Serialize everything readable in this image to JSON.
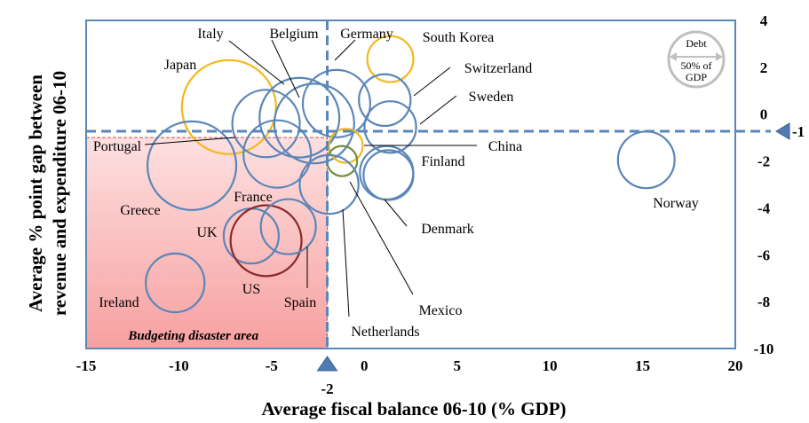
{
  "chart_data": {
    "type": "bubble-scatter",
    "title": "",
    "xlabel": "Average fiscal balance 06-10 (% GDP)",
    "ylabel_lines": [
      "Average % point gap between",
      "revenue and expenditure 06-10"
    ],
    "xlim": [
      -15,
      20
    ],
    "ylim": [
      -10,
      4
    ],
    "x_ticks": [
      -15,
      -10,
      -5,
      0,
      5,
      10,
      15,
      20
    ],
    "y_ticks": [
      4,
      2,
      0,
      -2,
      -4,
      -6,
      -8,
      -10
    ],
    "x_tick_labels": [
      "-15",
      "-10",
      "-5",
      "0",
      "5",
      "10",
      "15",
      "20"
    ],
    "y_tick_labels": [
      "4",
      "2",
      "0",
      "-2",
      "-4",
      "-6",
      "-8",
      "-10"
    ],
    "reference_lines": {
      "x": {
        "value": -2,
        "label": "-2"
      },
      "y": {
        "value": -1,
        "label": "-1"
      }
    },
    "shaded_region": {
      "label": "Budgeting disaster area",
      "x_range": [
        -15,
        -2
      ],
      "y_range": [
        -10,
        -1
      ]
    },
    "size_legend": {
      "title": "Debt",
      "value_label": "50% of",
      "unit_label": "GDP",
      "debt_pct": 50
    },
    "colors": {
      "default": "#5b86b8",
      "highlight_yellow": "#f2b81c",
      "us": "#8c2a2a",
      "mexico": "#6f8f3a",
      "frame": "#5b86b8",
      "region_top": "#fde0e0",
      "region_bottom": "#f7a0a0",
      "legend_gray": "#bfbfbf"
    },
    "series": [
      {
        "name": "Japan",
        "x": -7.3,
        "y": 0.3,
        "debt_pct": 146,
        "color": "highlight_yellow"
      },
      {
        "name": "Greece",
        "x": -9.3,
        "y": -2.2,
        "debt_pct": 130,
        "color": "default"
      },
      {
        "name": "Italy",
        "x": -3.5,
        "y": -0.15,
        "debt_pct": 105,
        "color": "default"
      },
      {
        "name": "Belgium",
        "x": -2.7,
        "y": -0.4,
        "debt_pct": 105,
        "color": "default"
      },
      {
        "name": "Portugal",
        "x": -5.3,
        "y": -0.4,
        "debt_pct": 75,
        "color": "default"
      },
      {
        "name": "France",
        "x": -4.7,
        "y": -1.7,
        "debt_pct": 75,
        "color": "default"
      },
      {
        "name": "Germany",
        "x": -1.5,
        "y": 0.45,
        "debt_pct": 75,
        "color": "default"
      },
      {
        "name": "South Korea",
        "x": 1.4,
        "y": 2.35,
        "debt_pct": 35,
        "color": "highlight_yellow"
      },
      {
        "name": "Switzerland",
        "x": 1.1,
        "y": 0.6,
        "debt_pct": 44,
        "color": "default"
      },
      {
        "name": "Sweden",
        "x": 1.4,
        "y": -0.55,
        "debt_pct": 44,
        "color": "default"
      },
      {
        "name": "China",
        "x": -1.0,
        "y": -1.35,
        "debt_pct": 19,
        "color": "highlight_yellow"
      },
      {
        "name": "Mexico",
        "x": -1.2,
        "y": -2.0,
        "debt_pct": 15,
        "color": "mexico"
      },
      {
        "name": "Netherlands",
        "x": -1.9,
        "y": -3.0,
        "debt_pct": 57,
        "color": "default"
      },
      {
        "name": "Finland",
        "x": 1.2,
        "y": -2.5,
        "debt_pct": 47,
        "color": "default"
      },
      {
        "name": "Denmark",
        "x": 1.3,
        "y": -2.6,
        "debt_pct": 41,
        "color": "default"
      },
      {
        "name": "Norway",
        "x": 15.2,
        "y": -1.95,
        "debt_pct": 53,
        "color": "default"
      },
      {
        "name": "UK",
        "x": -6.1,
        "y": -5.2,
        "debt_pct": 50,
        "color": "default"
      },
      {
        "name": "US",
        "x": -5.3,
        "y": -5.4,
        "debt_pct": 83,
        "color": "us"
      },
      {
        "name": "Spain",
        "x": -4.1,
        "y": -4.8,
        "debt_pct": 50,
        "color": "default"
      },
      {
        "name": "Ireland",
        "x": -10.2,
        "y": -7.2,
        "debt_pct": 57,
        "color": "default"
      }
    ],
    "annotations": [
      {
        "text": "Italy"
      },
      {
        "text": "Belgium"
      },
      {
        "text": "Germany"
      },
      {
        "text": "South Korea"
      },
      {
        "text": "Japan"
      },
      {
        "text": "Switzerland"
      },
      {
        "text": "Sweden"
      },
      {
        "text": "Portugal"
      },
      {
        "text": "China"
      },
      {
        "text": "Finland"
      },
      {
        "text": "Norway"
      },
      {
        "text": "Greece"
      },
      {
        "text": "France"
      },
      {
        "text": "UK"
      },
      {
        "text": "Denmark"
      },
      {
        "text": "US"
      },
      {
        "text": "Spain"
      },
      {
        "text": "Ireland"
      },
      {
        "text": "Mexico"
      },
      {
        "text": "Netherlands"
      }
    ]
  }
}
